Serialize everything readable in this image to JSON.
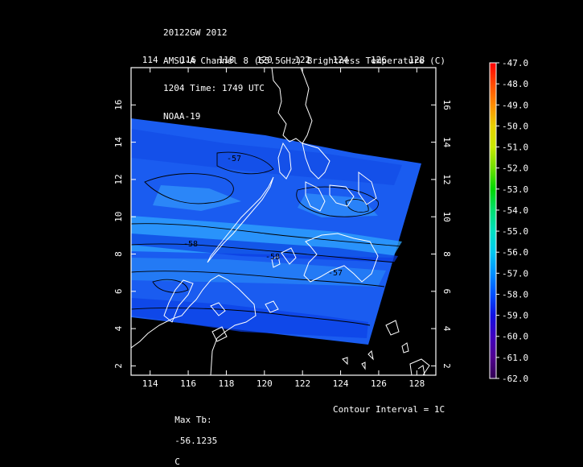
{
  "header": {
    "line1": "20122GW 2012",
    "line2": "AMSU-A Channel 8 (55.5GHz) Brightness Temperature (C)",
    "line3": "1204 Time: 1749 UTC",
    "line4": "NOAA-19"
  },
  "map": {
    "lon_ticks": [
      "114",
      "116",
      "118",
      "120",
      "122",
      "124",
      "126",
      "128"
    ],
    "lat_ticks": [
      "2",
      "4",
      "6",
      "8",
      "10",
      "12",
      "14",
      "16"
    ],
    "lon_range": [
      113,
      129
    ],
    "lat_range": [
      1.5,
      18
    ],
    "swath_color": "#1e6cf0",
    "coast_color": "#ffffff",
    "contour_color": "#000000",
    "contour_labels": [
      "-58",
      "-58",
      "-57",
      "-57"
    ]
  },
  "colorbar": {
    "labels": [
      "-47.0",
      "-48.0",
      "-49.0",
      "-50.0",
      "-51.0",
      "-52.0",
      "-53.0",
      "-54.0",
      "-55.0",
      "-56.0",
      "-57.0",
      "-58.0",
      "-59.0",
      "-60.0",
      "-61.0",
      "-62.0"
    ],
    "colors": [
      "#ff0000",
      "#ff4a00",
      "#ff8c00",
      "#e8d000",
      "#c8e800",
      "#70e000",
      "#00d800",
      "#00e070",
      "#00e0c0",
      "#00c8f0",
      "#0090ff",
      "#0050ff",
      "#1010e0",
      "#4000c0",
      "#500090",
      "#300050"
    ]
  },
  "footer": {
    "max_label": "Max Tb:",
    "max_value": "-56.1235",
    "max_unit": "C",
    "interval": "Contour Interval = 1C"
  }
}
